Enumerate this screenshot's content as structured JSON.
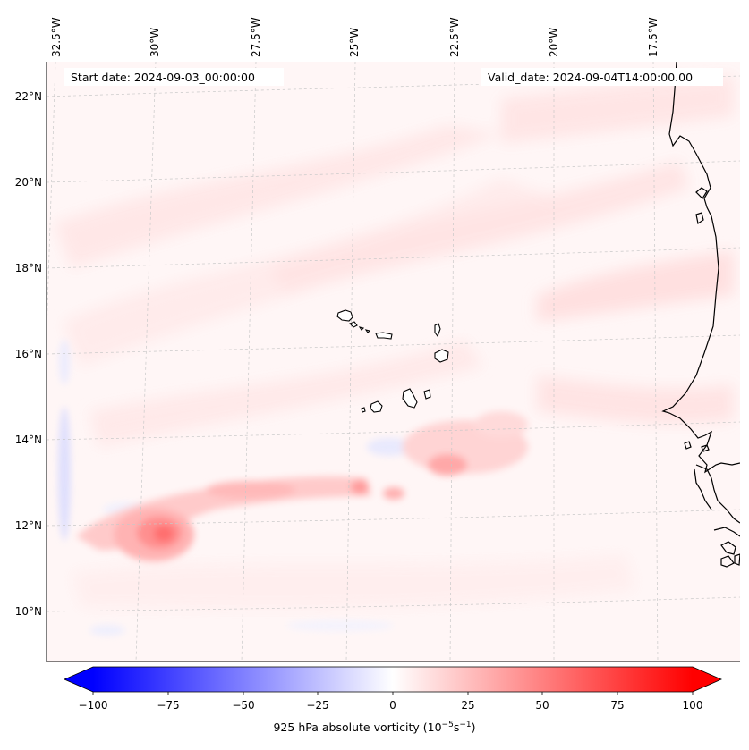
{
  "header": {
    "start_date": "Start date: 2024-09-03_00:00:00",
    "valid_date": "Valid_date: 2024-09-04T14:00:00.00"
  },
  "lon_ticks": [
    "32.5°W",
    "30°W",
    "27.5°W",
    "25°W",
    "22.5°W",
    "20°W",
    "17.5°W"
  ],
  "lat_ticks": [
    "22°N",
    "20°N",
    "18°N",
    "16°N",
    "14°N",
    "12°N",
    "10°N"
  ],
  "colorbar": {
    "ticks": [
      "−100",
      "−75",
      "−50",
      "−25",
      "0",
      "25",
      "50",
      "75",
      "100"
    ],
    "label_prefix": "925 hPa absolute vorticity (10",
    "label_exp1": "−5",
    "label_mid": "s",
    "label_exp2": "−1",
    "label_suffix": ")",
    "min_color": "#0000ff",
    "max_color": "#ff0000"
  },
  "map_elements": {
    "coastline": "West African coast",
    "islands": "Cape Verde islands",
    "vorticity_max": "cyclonic vortex near 12°N 30°W"
  }
}
